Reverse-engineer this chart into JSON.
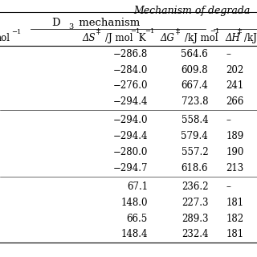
{
  "title_top": "Mechanism of degrada",
  "subheader": "D3 mechanism",
  "background_color": "#ffffff",
  "text_color": "#000000",
  "font_size": 8.5,
  "ds_vals": [
    "-286.8",
    "-284.0",
    "-276.0",
    "-294.4",
    "-294.0",
    "-294.4",
    "-280.0",
    "-294.7",
    "67.1",
    "148.0",
    "66.5",
    "148.4"
  ],
  "dg_vals": [
    "564.6",
    "609.8",
    "667.4",
    "723.8",
    "558.4",
    "579.4",
    "557.2",
    "618.6",
    "236.2",
    "227.3",
    "289.3",
    "232.4"
  ],
  "dh_vals": [
    "--",
    "202",
    "241",
    "266",
    "--",
    "189",
    "190",
    "213",
    "--",
    "181",
    "182",
    "181"
  ]
}
